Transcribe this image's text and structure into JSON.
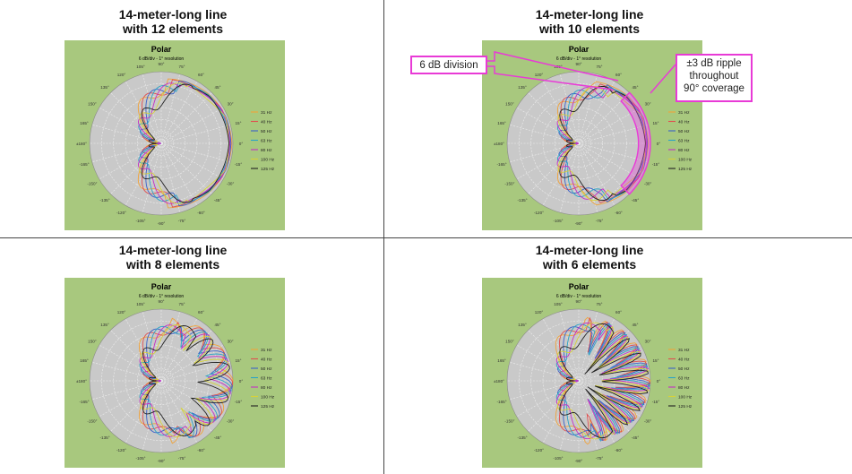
{
  "chart_data": [
    {
      "type": "polar",
      "panel_title": [
        "14-meter-long line",
        "with 12 elements"
      ],
      "title": "Polar",
      "subtitle": "6 dB/div - 1° resolution",
      "angle_ticks": [
        "90°",
        "75°",
        "60°",
        "45°",
        "30°",
        "15°",
        "0°",
        "-15°",
        "-30°",
        "-45°",
        "-60°",
        "-75°",
        "-90°",
        "-105°",
        "-120°",
        "-135°",
        "-150°",
        "-165°",
        "±180°",
        "165°",
        "150°",
        "135°",
        "120°",
        "105°"
      ],
      "radial_range_db": [
        -36,
        0
      ],
      "radial_division_db": 6,
      "grid": true,
      "legend_position": "right",
      "lobe_count": 1,
      "series": [
        {
          "name": "31 Hz",
          "color": "#f0a33a",
          "beamwidth_deg": 170,
          "ripple_db": 1
        },
        {
          "name": "40 Hz",
          "color": "#e05050",
          "beamwidth_deg": 160,
          "ripple_db": 2
        },
        {
          "name": "50 Hz",
          "color": "#3b62c9",
          "beamwidth_deg": 150,
          "ripple_db": 2
        },
        {
          "name": "63 Hz",
          "color": "#2aa3c7",
          "beamwidth_deg": 145,
          "ripple_db": 3
        },
        {
          "name": "80 Hz",
          "color": "#c42fc4",
          "beamwidth_deg": 140,
          "ripple_db": 3
        },
        {
          "name": "100 Hz",
          "color": "#d6d23a",
          "beamwidth_deg": 130,
          "ripple_db": 4
        },
        {
          "name": "125 Hz",
          "color": "#222222",
          "beamwidth_deg": 120,
          "ripple_db": 4
        }
      ]
    },
    {
      "type": "polar",
      "panel_title": [
        "14-meter-long line",
        "with 10 elements"
      ],
      "title": "Polar",
      "subtitle": "6 dB/div - 1° resolution",
      "angle_ticks": [
        "90°",
        "75°",
        "60°",
        "45°",
        "30°",
        "15°",
        "0°",
        "-15°",
        "-30°",
        "-45°",
        "-60°",
        "-75°",
        "-90°",
        "-105°",
        "-120°",
        "-135°",
        "-150°",
        "-165°",
        "±180°",
        "165°",
        "150°",
        "135°",
        "120°",
        "105°"
      ],
      "radial_range_db": [
        -36,
        0
      ],
      "radial_division_db": 6,
      "grid": true,
      "legend_position": "right",
      "lobe_count": 1,
      "annotations": [
        {
          "text": "6 dB division"
        },
        {
          "text": "±3 dB ripple throughout 90° coverage"
        }
      ],
      "highlight_coverage_deg": 90,
      "highlight_ripple_db": 3,
      "series": [
        {
          "name": "31 Hz",
          "color": "#f0a33a",
          "beamwidth_deg": 150,
          "ripple_db": 2
        },
        {
          "name": "40 Hz",
          "color": "#e05050",
          "beamwidth_deg": 140,
          "ripple_db": 3
        },
        {
          "name": "50 Hz",
          "color": "#3b62c9",
          "beamwidth_deg": 130,
          "ripple_db": 3
        },
        {
          "name": "63 Hz",
          "color": "#2aa3c7",
          "beamwidth_deg": 125,
          "ripple_db": 4
        },
        {
          "name": "80 Hz",
          "color": "#c42fc4",
          "beamwidth_deg": 120,
          "ripple_db": 4
        },
        {
          "name": "100 Hz",
          "color": "#d6d23a",
          "beamwidth_deg": 115,
          "ripple_db": 5
        },
        {
          "name": "125 Hz",
          "color": "#222222",
          "beamwidth_deg": 110,
          "ripple_db": 5
        }
      ]
    },
    {
      "type": "polar",
      "panel_title": [
        "14-meter-long line",
        "with 8 elements"
      ],
      "title": "Polar",
      "subtitle": "6 dB/div - 1° resolution",
      "angle_ticks": [
        "90°",
        "75°",
        "60°",
        "45°",
        "30°",
        "15°",
        "0°",
        "-15°",
        "-30°",
        "-45°",
        "-60°",
        "-75°",
        "-90°",
        "-105°",
        "-120°",
        "-135°",
        "-150°",
        "-165°",
        "±180°",
        "165°",
        "150°",
        "135°",
        "120°",
        "105°"
      ],
      "radial_range_db": [
        -36,
        0
      ],
      "radial_division_db": 6,
      "grid": true,
      "legend_position": "right",
      "lobe_count": 3,
      "series": [
        {
          "name": "31 Hz",
          "color": "#f0a33a",
          "beamwidth_deg": 160,
          "ripple_db": 3
        },
        {
          "name": "40 Hz",
          "color": "#e05050",
          "beamwidth_deg": 150,
          "ripple_db": 4
        },
        {
          "name": "50 Hz",
          "color": "#3b62c9",
          "beamwidth_deg": 140,
          "ripple_db": 5
        },
        {
          "name": "63 Hz",
          "color": "#2aa3c7",
          "beamwidth_deg": 130,
          "ripple_db": 6
        },
        {
          "name": "80 Hz",
          "color": "#c42fc4",
          "beamwidth_deg": 120,
          "ripple_db": 6
        },
        {
          "name": "100 Hz",
          "color": "#d6d23a",
          "beamwidth_deg": 110,
          "ripple_db": 7
        },
        {
          "name": "125 Hz",
          "color": "#222222",
          "beamwidth_deg": 100,
          "ripple_db": 8
        }
      ]
    },
    {
      "type": "polar",
      "panel_title": [
        "14-meter-long line",
        "with 6 elements"
      ],
      "title": "Polar",
      "subtitle": "6 dB/div - 1° resolution",
      "angle_ticks": [
        "90°",
        "75°",
        "60°",
        "45°",
        "30°",
        "15°",
        "0°",
        "-15°",
        "-30°",
        "-45°",
        "-60°",
        "-75°",
        "-90°",
        "-105°",
        "-120°",
        "-135°",
        "-150°",
        "-165°",
        "±180°",
        "165°",
        "150°",
        "135°",
        "120°",
        "105°"
      ],
      "radial_range_db": [
        -36,
        0
      ],
      "radial_division_db": 6,
      "grid": true,
      "legend_position": "right",
      "lobe_count": 5,
      "series": [
        {
          "name": "31 Hz",
          "color": "#f0a33a",
          "beamwidth_deg": 170,
          "ripple_db": 6
        },
        {
          "name": "40 Hz",
          "color": "#e05050",
          "beamwidth_deg": 160,
          "ripple_db": 8
        },
        {
          "name": "50 Hz",
          "color": "#3b62c9",
          "beamwidth_deg": 150,
          "ripple_db": 9
        },
        {
          "name": "63 Hz",
          "color": "#2aa3c7",
          "beamwidth_deg": 140,
          "ripple_db": 10
        },
        {
          "name": "80 Hz",
          "color": "#c42fc4",
          "beamwidth_deg": 130,
          "ripple_db": 11
        },
        {
          "name": "100 Hz",
          "color": "#d6d23a",
          "beamwidth_deg": 120,
          "ripple_db": 12
        },
        {
          "name": "125 Hz",
          "color": "#222222",
          "beamwidth_deg": 110,
          "ripple_db": 13
        }
      ]
    }
  ]
}
